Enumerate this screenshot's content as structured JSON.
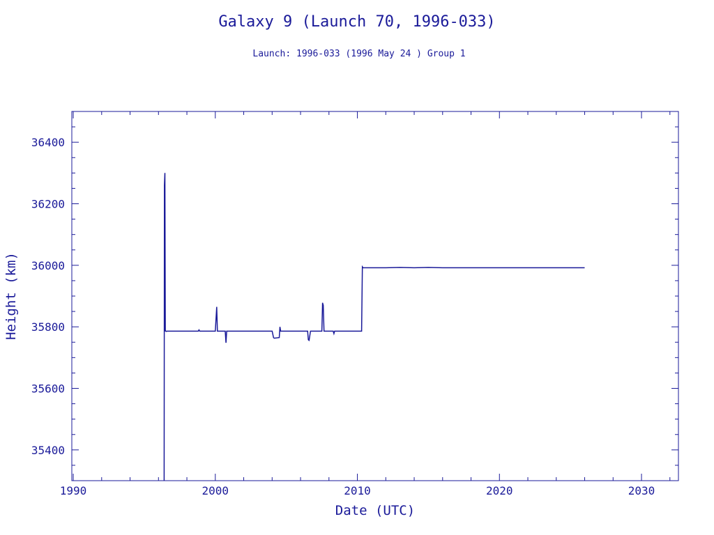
{
  "colors": {
    "ink": "#1a1a99",
    "background": "#ffffff"
  },
  "chart_data": {
    "type": "line",
    "title": "Galaxy 9 (Launch 70, 1996-033)",
    "subtitle": "Launch: 1996-033  (1996 May 24 )  Group 1",
    "xlabel": "Date (UTC)",
    "ylabel": "Height (km)",
    "xlim": [
      1989.9,
      2032.6
    ],
    "ylim": [
      35300,
      36500
    ],
    "x_ticks": [
      1990,
      2000,
      2010,
      2020,
      2030
    ],
    "x_tick_labels": [
      "1990",
      "2000",
      "2010",
      "2020",
      "2030"
    ],
    "y_ticks": [
      35400,
      35600,
      35800,
      36000,
      36200,
      36400
    ],
    "y_tick_labels": [
      "35400",
      "35600",
      "35800",
      "36000",
      "36200",
      "36400"
    ],
    "grid": false,
    "series": [
      {
        "x": [
          1996.4,
          1996.42,
          1996.45,
          1996.48,
          1996.5,
          1996.55,
          1996.6,
          1998.0,
          1998.8,
          1998.85,
          1998.9,
          2000.0,
          2000.1,
          2000.15,
          2000.2,
          2000.7,
          2000.75,
          2000.8,
          2001.5,
          2003.5,
          2004.0,
          2004.1,
          2004.15,
          2004.5,
          2004.55,
          2004.6,
          2006.5,
          2006.55,
          2006.6,
          2006.7,
          2007.5,
          2007.55,
          2007.6,
          2007.65,
          2008.3,
          2008.35,
          2008.4,
          2010.3,
          2010.35,
          2010.4,
          2011.0,
          2012.0,
          2013.0,
          2014.0,
          2015.0,
          2016.0,
          2017.0,
          2018.0,
          2019.0,
          2020.0,
          2021.0,
          2022.0,
          2023.0,
          2024.0,
          2025.0,
          2026.0
        ],
        "y": [
          35300,
          36260,
          36300,
          35785,
          35787,
          35785,
          35786,
          35786,
          35786,
          35790,
          35786,
          35786,
          35865,
          35786,
          35786,
          35786,
          35748,
          35786,
          35786,
          35786,
          35786,
          35765,
          35763,
          35765,
          35800,
          35786,
          35786,
          35758,
          35756,
          35786,
          35786,
          35878,
          35870,
          35786,
          35786,
          35778,
          35786,
          35786,
          35995,
          35992,
          35992,
          35992,
          35993,
          35992,
          35993,
          35992,
          35992,
          35992,
          35992,
          35992,
          35992,
          35992,
          35992,
          35992,
          35992,
          35992
        ]
      }
    ]
  }
}
